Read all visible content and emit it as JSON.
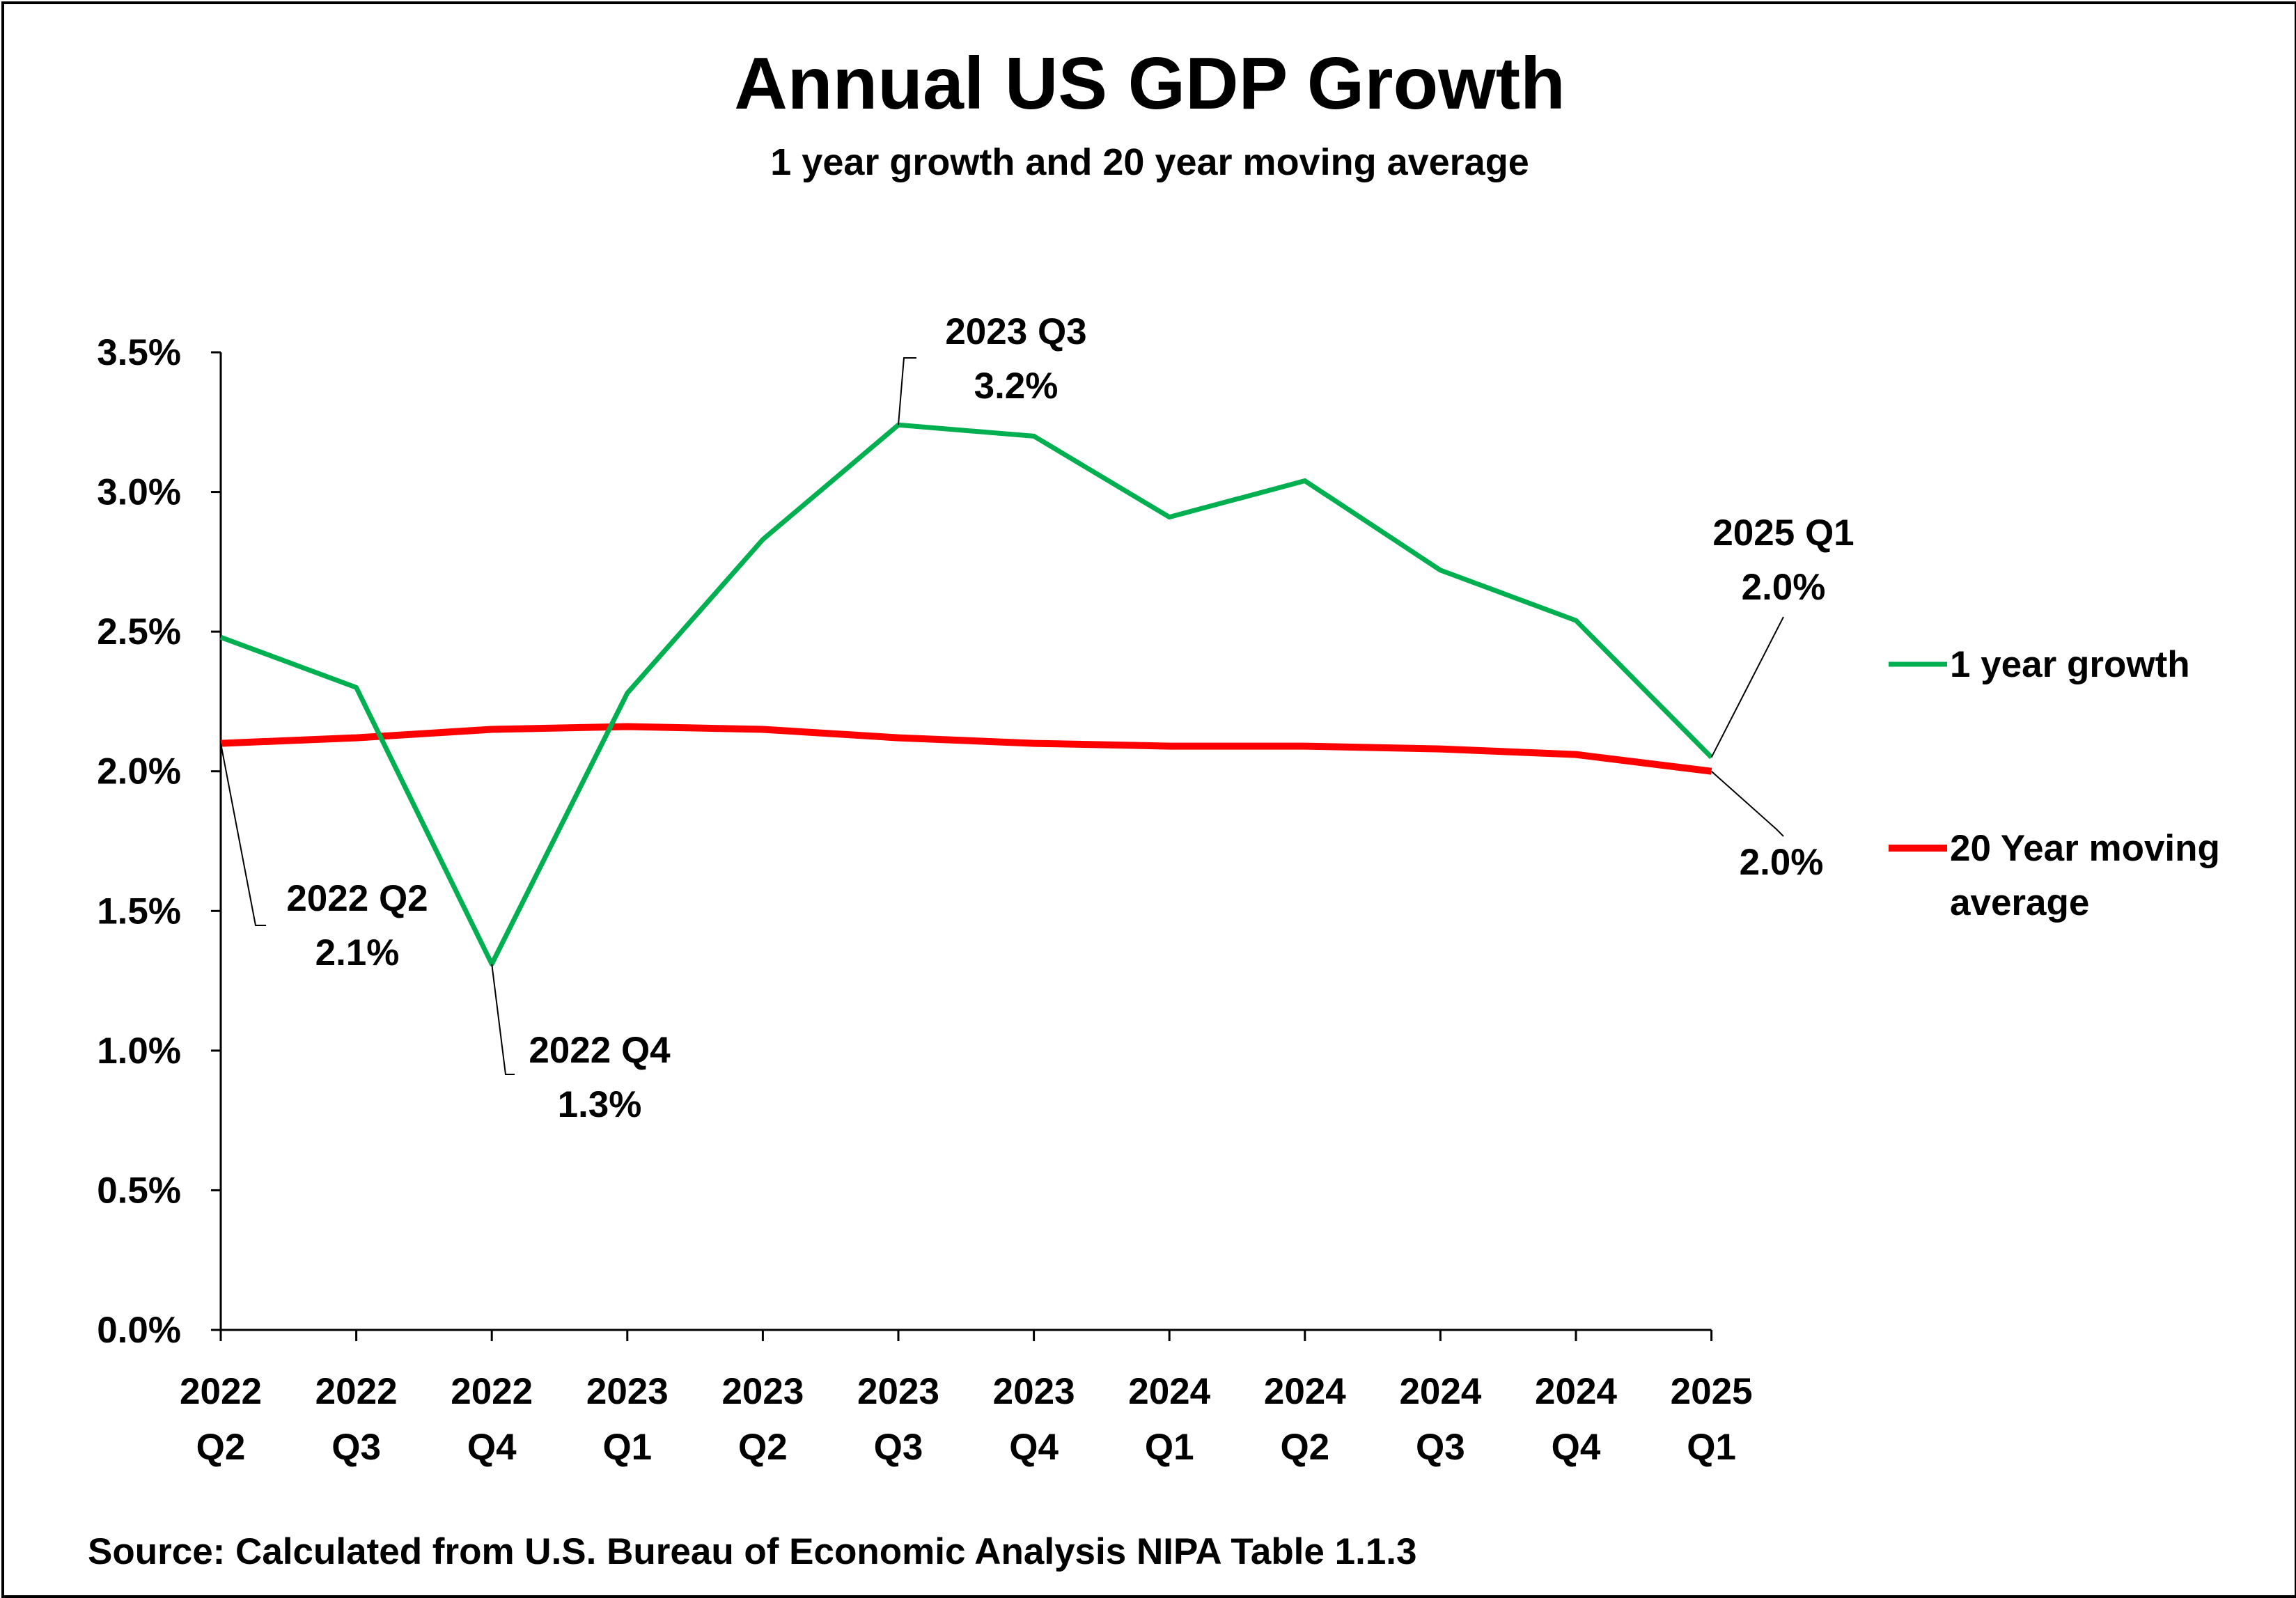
{
  "chart_data": {
    "type": "line",
    "title": "Annual US GDP Growth",
    "subtitle": "1 year growth and 20 year moving average",
    "categories": [
      [
        "2022",
        "Q2"
      ],
      [
        "2022",
        "Q3"
      ],
      [
        "2022",
        "Q4"
      ],
      [
        "2023",
        "Q1"
      ],
      [
        "2023",
        "Q2"
      ],
      [
        "2023",
        "Q3"
      ],
      [
        "2023",
        "Q4"
      ],
      [
        "2024",
        "Q1"
      ],
      [
        "2024",
        "Q2"
      ],
      [
        "2024",
        "Q3"
      ],
      [
        "2024",
        "Q4"
      ],
      [
        "2025",
        "Q1"
      ]
    ],
    "y_ticks": [
      "0.0%",
      "0.5%",
      "1.0%",
      "1.5%",
      "2.0%",
      "2.5%",
      "3.0%",
      "3.5%"
    ],
    "ylim": [
      0,
      3.5
    ],
    "grid": false,
    "legend_position": "right",
    "series": [
      {
        "name": "1 year growth",
        "color": "#00B050",
        "values": [
          2.48,
          2.3,
          1.31,
          2.28,
          2.83,
          3.24,
          3.2,
          2.91,
          3.04,
          2.72,
          2.54,
          2.05
        ]
      },
      {
        "name": "20 Year moving average",
        "color": "#FF0000",
        "values": [
          2.1,
          2.12,
          2.15,
          2.16,
          2.15,
          2.12,
          2.1,
          2.09,
          2.09,
          2.08,
          2.06,
          2.0
        ]
      }
    ],
    "annotations": [
      {
        "lines": [
          "2023 Q3",
          "3.2%"
        ],
        "series": 0,
        "index": 5
      },
      {
        "lines": [
          "2025 Q1",
          "2.0%"
        ],
        "series": 0,
        "index": 11
      },
      {
        "lines": [
          "2.0%"
        ],
        "series": 1,
        "index": 11
      },
      {
        "lines": [
          "2022 Q2",
          "2.1%"
        ],
        "series": 1,
        "index": 0
      },
      {
        "lines": [
          "2022 Q4",
          "1.3%"
        ],
        "series": 0,
        "index": 2
      }
    ],
    "source": "Source: Calculated from U.S. Bureau of Economic Analysis NIPA Table  1.1.3"
  }
}
